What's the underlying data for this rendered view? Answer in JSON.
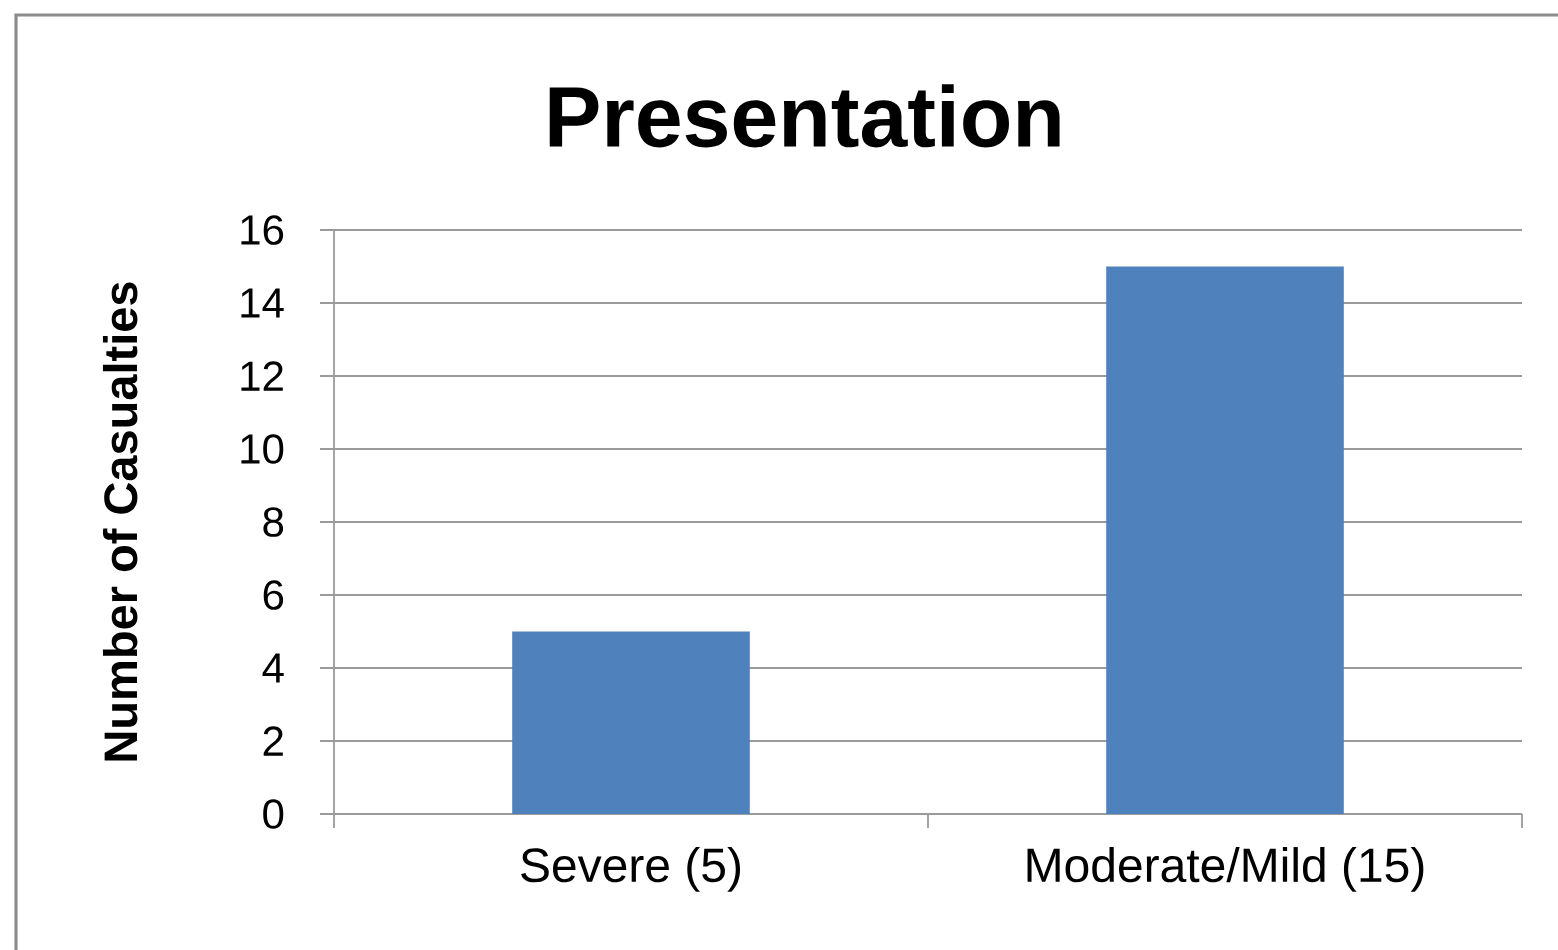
{
  "chart_data": {
    "type": "bar",
    "title": "Presentation",
    "ylabel": "Number of Casualties",
    "categories": [
      "Severe (5)",
      "Moderate/Mild (15)"
    ],
    "values": [
      5,
      15
    ],
    "color": "#4f81bd",
    "ylim": [
      0,
      16
    ],
    "yticks": [
      0,
      2,
      4,
      6,
      8,
      10,
      12,
      14,
      16
    ],
    "grid": "y"
  }
}
